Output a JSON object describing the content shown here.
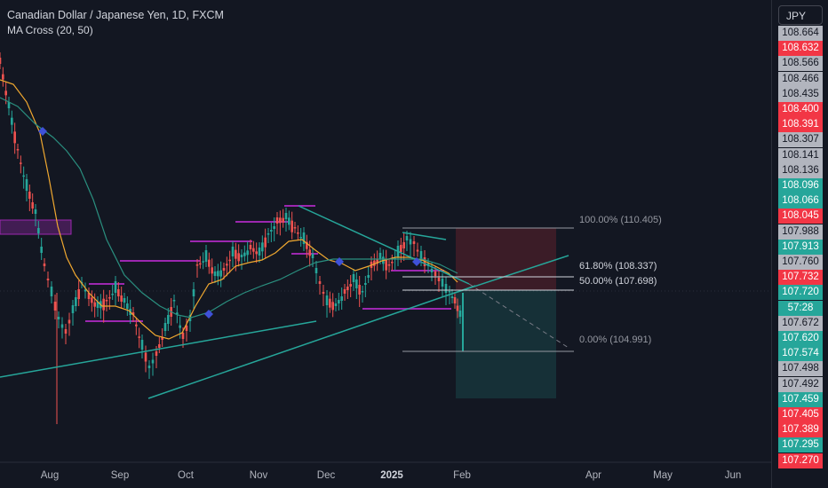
{
  "header": {
    "title": "Canadian Dollar / Japanese Yen, 1D, FXCM",
    "indicator": "MA Cross (20, 50)"
  },
  "currency": "JPY",
  "colors": {
    "background": "#131722",
    "up": "#26a69a",
    "down": "#ef5350",
    "ma_fast": "#f0a830",
    "ma_slow": "#2a8f7f",
    "trendline": "#26a69a",
    "fib": "#9598a1",
    "box": "#9c27b0",
    "cross_marker": "#3f51d8",
    "gray_label": "#b2b5be",
    "green_label": "#26a69a",
    "red_label": "#f23645"
  },
  "price_labels": [
    {
      "text": "108.664",
      "color": "gray"
    },
    {
      "text": "108.632",
      "color": "red"
    },
    {
      "text": "108.566",
      "color": "gray"
    },
    {
      "text": "108.466",
      "color": "gray"
    },
    {
      "text": "108.435",
      "color": "gray"
    },
    {
      "text": "108.400",
      "color": "red"
    },
    {
      "text": "108.391",
      "color": "red"
    },
    {
      "text": "108.307",
      "color": "gray"
    },
    {
      "text": "108.141",
      "color": "gray"
    },
    {
      "text": "108.136",
      "color": "gray"
    },
    {
      "text": "108.096",
      "color": "green"
    },
    {
      "text": "108.066",
      "color": "green"
    },
    {
      "text": "108.045",
      "color": "red"
    },
    {
      "text": "107.988",
      "color": "gray"
    },
    {
      "text": "107.913",
      "color": "green"
    },
    {
      "text": "107.760",
      "color": "gray"
    },
    {
      "text": "107.732",
      "color": "red"
    },
    {
      "text": "107.720",
      "color": "green"
    },
    {
      "text": "57:28",
      "color": "green"
    },
    {
      "text": "107.672",
      "color": "gray"
    },
    {
      "text": "107.620",
      "color": "green"
    },
    {
      "text": "107.574",
      "color": "green"
    },
    {
      "text": "107.498",
      "color": "gray"
    },
    {
      "text": "107.492",
      "color": "gray"
    },
    {
      "text": "107.459",
      "color": "green"
    },
    {
      "text": "107.405",
      "color": "red"
    },
    {
      "text": "107.389",
      "color": "red"
    },
    {
      "text": "107.295",
      "color": "green"
    },
    {
      "text": "107.270",
      "color": "red"
    }
  ],
  "time_labels": [
    {
      "text": "Aug",
      "bold": false
    },
    {
      "text": "Sep",
      "bold": false
    },
    {
      "text": "Oct",
      "bold": false
    },
    {
      "text": "Nov",
      "bold": false
    },
    {
      "text": "Dec",
      "bold": false
    },
    {
      "text": "2025",
      "bold": true
    },
    {
      "text": "Feb",
      "bold": false
    },
    {
      "text": "Apr",
      "bold": false
    },
    {
      "text": "May",
      "bold": false
    },
    {
      "text": "Jun",
      "bold": false
    }
  ],
  "chart_data": {
    "type": "candlestick",
    "symbol": "Canadian Dollar / Japanese Yen",
    "interval": "1D",
    "source": "FXCM",
    "indicator": "MA Cross (20, 50)",
    "x_tick_labels": [
      "Aug",
      "Sep",
      "Oct",
      "Nov",
      "Dec",
      "2025",
      "Feb",
      "Apr",
      "May",
      "Jun"
    ],
    "fibonacci": [
      {
        "label": "100.00% (110.405)",
        "level": 1.0,
        "price": 110.405
      },
      {
        "label": "61.80% (108.337)",
        "level": 0.618,
        "price": 108.337
      },
      {
        "label": "50.00% (107.698)",
        "level": 0.5,
        "price": 107.698
      },
      {
        "label": "0.00% (104.991)",
        "level": 0.0,
        "price": 104.991
      }
    ],
    "last_price": 107.72,
    "countdown": "57:28"
  }
}
